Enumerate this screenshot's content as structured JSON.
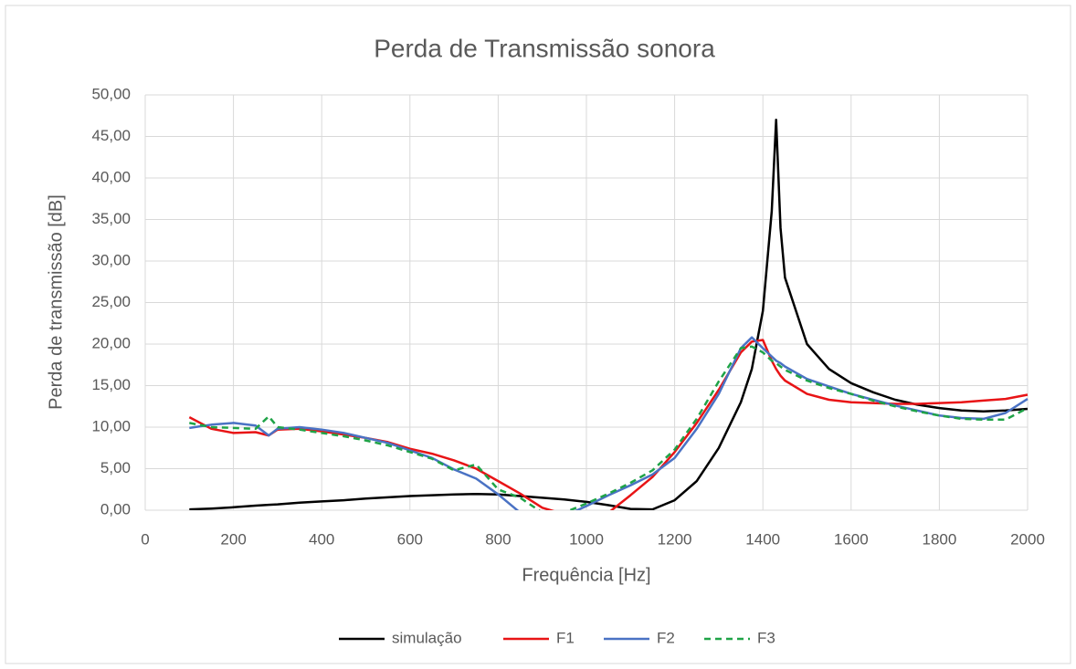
{
  "chart_data": {
    "type": "line",
    "title": "Perda de Transmissão sonora",
    "x_label": "Frequência [Hz]",
    "y_label": "Perda de transmissão [dB]",
    "x": [
      100,
      150,
      200,
      250,
      280,
      300,
      350,
      400,
      450,
      500,
      550,
      600,
      650,
      700,
      750,
      800,
      850,
      900,
      950,
      1000,
      1050,
      1100,
      1150,
      1200,
      1250,
      1300,
      1350,
      1375,
      1400,
      1420,
      1430,
      1440,
      1450,
      1500,
      1550,
      1600,
      1650,
      1700,
      1750,
      1800,
      1850,
      1900,
      1950,
      2000
    ],
    "series": [
      {
        "name": "simulação",
        "color": "#000000",
        "line_style": "solid",
        "values": [
          0.1,
          0.2,
          0.35,
          0.55,
          0.65,
          0.7,
          0.9,
          1.05,
          1.2,
          1.4,
          1.55,
          1.7,
          1.8,
          1.9,
          1.95,
          1.9,
          1.7,
          1.5,
          1.3,
          1.0,
          0.6,
          0.15,
          0.1,
          1.2,
          3.5,
          7.5,
          13,
          17,
          24,
          36,
          47,
          34,
          28,
          20,
          17,
          15.3,
          14.2,
          13.3,
          12.7,
          12.3,
          12.0,
          11.9,
          12.0,
          12.2
        ]
      },
      {
        "name": "F1",
        "color": "#e81416",
        "line_style": "solid",
        "values": [
          11.2,
          9.8,
          9.3,
          9.4,
          9.0,
          9.7,
          9.8,
          9.5,
          9.1,
          8.7,
          8.2,
          7.4,
          6.8,
          6.0,
          5.0,
          3.5,
          2.0,
          0.3,
          -0.5,
          -1.0,
          -0.3,
          1.8,
          4.0,
          7.0,
          10.5,
          14.5,
          19.0,
          20.3,
          20.5,
          18.0,
          17.0,
          16.2,
          15.6,
          14.0,
          13.3,
          13.0,
          12.9,
          12.8,
          12.8,
          12.9,
          13.0,
          13.2,
          13.4,
          13.9
        ]
      },
      {
        "name": "F2",
        "color": "#4a72c4",
        "line_style": "solid",
        "values": [
          9.9,
          10.3,
          10.5,
          10.2,
          9.0,
          9.8,
          10.0,
          9.7,
          9.3,
          8.7,
          8.1,
          7.2,
          6.3,
          4.9,
          3.8,
          1.9,
          -0.3,
          -0.5,
          -0.7,
          0.5,
          1.8,
          3.0,
          4.3,
          6.3,
          9.8,
          14.0,
          19.5,
          20.8,
          19.5,
          18.5,
          18.0,
          17.7,
          17.3,
          15.8,
          14.9,
          14.0,
          13.3,
          12.6,
          12.0,
          11.4,
          11.1,
          11.0,
          11.7,
          13.4
        ]
      },
      {
        "name": "F3",
        "color": "#1fa347",
        "line_style": "dashed",
        "values": [
          10.5,
          10.0,
          9.9,
          9.8,
          11.3,
          10.0,
          9.7,
          9.3,
          8.9,
          8.4,
          7.8,
          7.0,
          6.2,
          4.8,
          5.5,
          2.5,
          1.5,
          -0.3,
          -0.3,
          0.8,
          2.0,
          3.3,
          4.8,
          7.3,
          11.0,
          15.5,
          19.5,
          19.7,
          19.0,
          18.0,
          17.7,
          17.3,
          16.9,
          15.6,
          14.7,
          14.0,
          13.2,
          12.5,
          11.9,
          11.4,
          11.0,
          10.9,
          10.9,
          12.3
        ]
      }
    ],
    "xlim": [
      0,
      2000
    ],
    "xticks": [
      0,
      200,
      400,
      600,
      800,
      1000,
      1200,
      1400,
      1600,
      1800,
      2000
    ],
    "ylim": [
      0,
      50
    ],
    "yticks": [
      {
        "value": 0,
        "label": "0,00"
      },
      {
        "value": 5,
        "label": "5,00"
      },
      {
        "value": 10,
        "label": "10,00"
      },
      {
        "value": 15,
        "label": "15,00"
      },
      {
        "value": 20,
        "label": "20,00"
      },
      {
        "value": 25,
        "label": "25,00"
      },
      {
        "value": 30,
        "label": "30,00"
      },
      {
        "value": 35,
        "label": "35,00"
      },
      {
        "value": 40,
        "label": "40,00"
      },
      {
        "value": 45,
        "label": "45,00"
      },
      {
        "value": 50,
        "label": "50,00"
      }
    ],
    "grid": true,
    "legend": "bottom"
  }
}
